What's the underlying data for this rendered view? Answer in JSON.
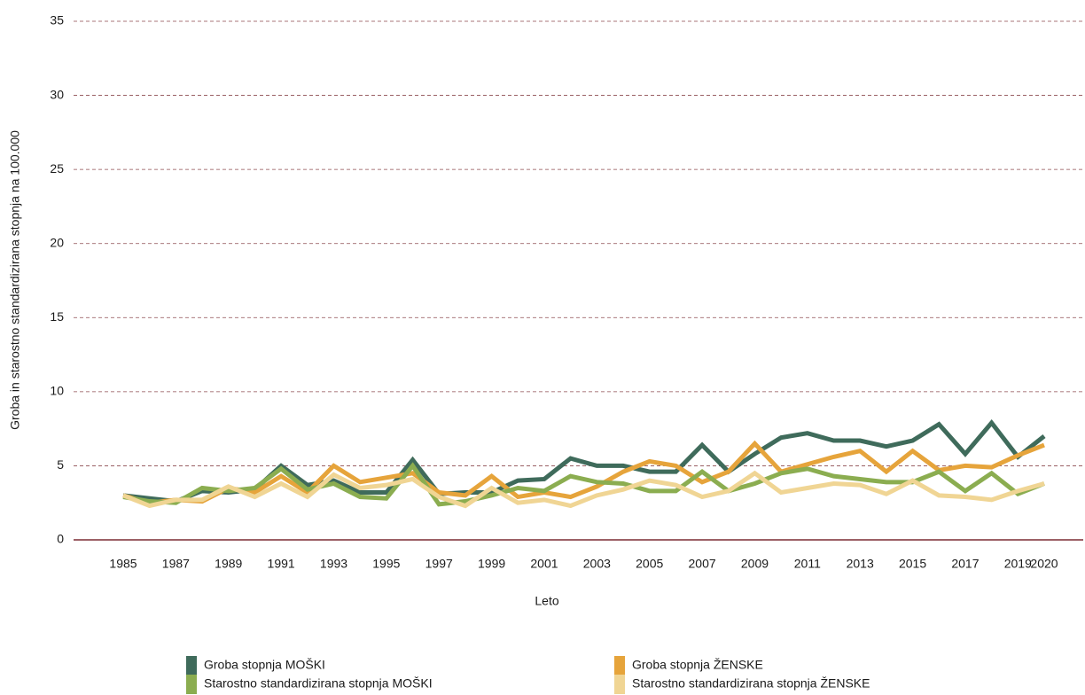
{
  "chart_data": {
    "type": "line",
    "xlabel": "Leto",
    "ylabel": "Groba in starostno standardizirana stopnja na 100.000",
    "x": [
      1985,
      1986,
      1987,
      1988,
      1989,
      1990,
      1991,
      1992,
      1993,
      1994,
      1995,
      1996,
      1997,
      1998,
      1999,
      2000,
      2001,
      2002,
      2003,
      2004,
      2005,
      2006,
      2007,
      2008,
      2009,
      2010,
      2011,
      2012,
      2013,
      2014,
      2015,
      2016,
      2017,
      2018,
      2019,
      2020
    ],
    "series": [
      {
        "name": "Groba stopnja MOŠKI",
        "color": "#3f6b5b",
        "values": [
          3.0,
          2.8,
          2.6,
          3.3,
          3.2,
          3.4,
          5.0,
          3.7,
          4.0,
          3.2,
          3.2,
          5.4,
          3.1,
          3.2,
          3.2,
          4.0,
          4.1,
          5.5,
          5.0,
          5.0,
          4.6,
          4.6,
          6.4,
          4.6,
          5.8,
          6.9,
          7.2,
          6.7,
          6.7,
          6.3,
          6.7,
          7.8,
          5.8,
          7.9,
          5.6,
          7.0
        ]
      },
      {
        "name": "Groba stopnja ŽENSKE",
        "color": "#e6a43b",
        "values": [
          3.0,
          2.5,
          2.7,
          2.6,
          3.5,
          3.2,
          4.3,
          3.2,
          5.0,
          3.9,
          4.2,
          4.5,
          3.2,
          3.0,
          4.3,
          2.9,
          3.2,
          2.9,
          3.6,
          4.6,
          5.3,
          5.0,
          3.9,
          4.6,
          6.5,
          4.6,
          5.1,
          5.6,
          6.0,
          4.6,
          6.0,
          4.7,
          5.0,
          4.9,
          5.7,
          6.4
        ]
      },
      {
        "name": "Starostno standardizirana stopnja MOŠKI",
        "color": "#8bad50",
        "values": [
          2.9,
          2.6,
          2.5,
          3.5,
          3.3,
          3.5,
          4.8,
          3.4,
          3.8,
          2.9,
          2.8,
          5.0,
          2.4,
          2.6,
          3.0,
          3.5,
          3.3,
          4.3,
          3.9,
          3.8,
          3.3,
          3.3,
          4.6,
          3.3,
          3.8,
          4.5,
          4.8,
          4.3,
          4.1,
          3.9,
          3.9,
          4.6,
          3.3,
          4.5,
          3.1,
          3.8
        ]
      },
      {
        "name": "Starostno standardizirana stopnja ŽENSKE",
        "color": "#f0d594",
        "values": [
          3.0,
          2.3,
          2.7,
          2.7,
          3.6,
          2.9,
          3.8,
          2.9,
          4.4,
          3.5,
          3.7,
          4.1,
          2.9,
          2.3,
          3.5,
          2.5,
          2.7,
          2.3,
          3.0,
          3.4,
          4.0,
          3.7,
          2.9,
          3.3,
          4.5,
          3.2,
          3.5,
          3.8,
          3.7,
          3.1,
          4.0,
          3.0,
          2.9,
          2.7,
          3.3,
          3.8
        ]
      }
    ],
    "xlim": [
      1985,
      2020
    ],
    "xticks": [
      1985,
      1987,
      1989,
      1991,
      1993,
      1995,
      1997,
      1999,
      2001,
      2003,
      2005,
      2007,
      2009,
      2011,
      2013,
      2015,
      2017,
      2019,
      2020
    ],
    "ylim": [
      0,
      35
    ],
    "yticks": [
      0,
      5,
      10,
      15,
      20,
      25,
      30,
      35
    ],
    "grid": true
  }
}
